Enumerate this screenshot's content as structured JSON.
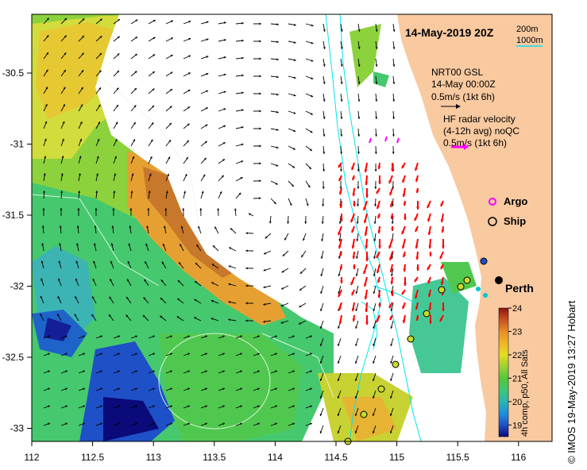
{
  "title": "14-May-2019 20Z",
  "depth_legend": {
    "contour_1": "200m",
    "contour_2": "1000m"
  },
  "model_legend": {
    "line1": "NRT00 GSL",
    "line2": "14-May 00:00Z",
    "line3": "0.5m/s (1kt 6h)"
  },
  "radar_legend": {
    "line1": "HF radar velocity",
    "line2": "(4-12h avg) noQC",
    "line3": "0.5m/s (1kt 6h)"
  },
  "markers": {
    "argo": "Argo",
    "ship": "Ship",
    "city": "Perth"
  },
  "colorbar": {
    "label": "4h comp, p50, All Sats",
    "ticks": [
      "19",
      "20",
      "21",
      "22",
      "23",
      "24"
    ],
    "min": 18.5,
    "max": 24
  },
  "axes": {
    "x_ticks": [
      "112",
      "112.5",
      "113",
      "113.5",
      "114",
      "114.5",
      "115",
      "115.5",
      "116"
    ],
    "y_ticks": [
      "-30.5",
      "-31",
      "-31.5",
      "-32",
      "-32.5",
      "-33"
    ]
  },
  "credit": "© IMOS 19-May-2019 13:27 Hobart",
  "colors": {
    "land": "#f9c9a0",
    "contour": "#00e5ee",
    "radar_arrow": "#ff0000",
    "argo": "#ff00ff",
    "model_arrow": "#000000"
  }
}
